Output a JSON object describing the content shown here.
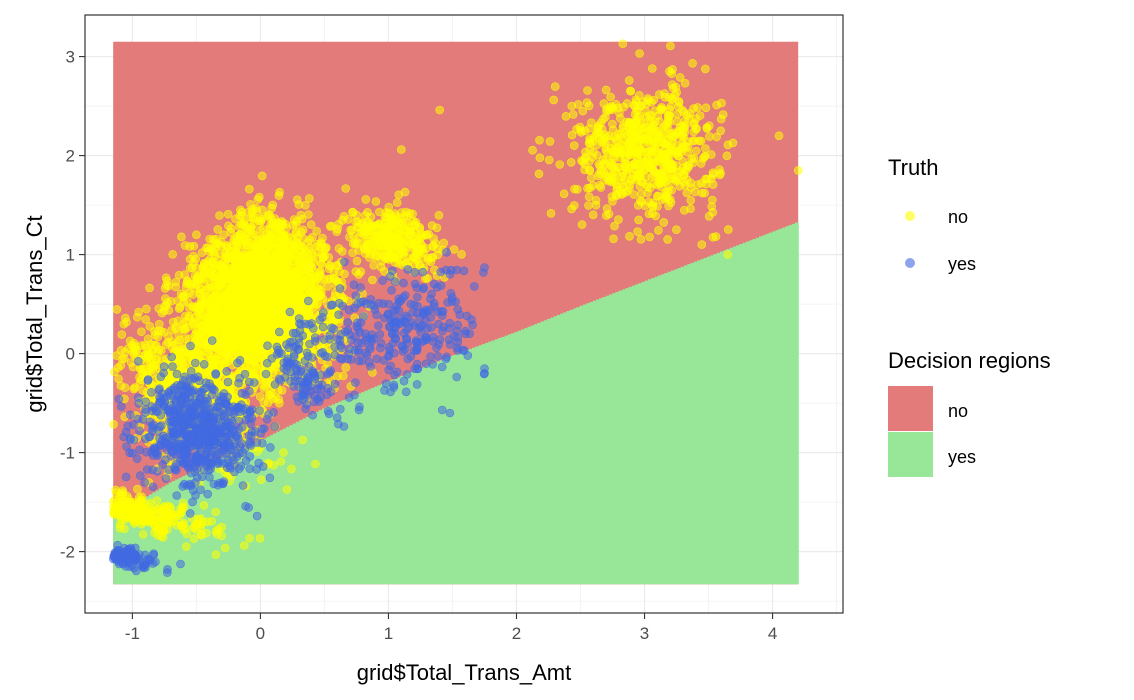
{
  "chart_data": {
    "type": "scatter",
    "title": "",
    "xlabel": "grid$Total_Trans_Amt",
    "ylabel": "grid$Total_Trans_Ct",
    "xlim": [
      -1.37,
      4.55
    ],
    "ylim": [
      -2.62,
      3.42
    ],
    "x_ticks": [
      -1,
      0,
      1,
      2,
      3,
      4
    ],
    "y_ticks": [
      -2,
      -1,
      0,
      1,
      2,
      3
    ],
    "x_tick_labels": [
      "-1",
      "0",
      "1",
      "2",
      "3",
      "4"
    ],
    "y_tick_labels": [
      "-2",
      "-1",
      "0",
      "1",
      "2",
      "3"
    ],
    "grid": true,
    "theme": "bw",
    "decision_regions": {
      "title": "Decision regions",
      "grid_x_range": [
        -1.15,
        4.2
      ],
      "grid_y_range": [
        -2.33,
        3.15
      ],
      "boundary": [
        {
          "x": -1.15,
          "y": -1.65
        },
        {
          "x": -0.7,
          "y": -1.3
        },
        {
          "x": -0.3,
          "y": -1.05
        },
        {
          "x": 0.0,
          "y": -0.88
        },
        {
          "x": 0.5,
          "y": -0.55
        },
        {
          "x": 1.0,
          "y": -0.28
        },
        {
          "x": 1.5,
          "y": -0.02
        },
        {
          "x": 2.0,
          "y": 0.22
        },
        {
          "x": 2.5,
          "y": 0.48
        },
        {
          "x": 3.0,
          "y": 0.73
        },
        {
          "x": 3.5,
          "y": 0.98
        },
        {
          "x": 4.2,
          "y": 1.33
        }
      ],
      "classes": [
        {
          "label": "no",
          "color": "#e47b7b",
          "side": "above"
        },
        {
          "label": "yes",
          "color": "#98e698",
          "side": "below"
        }
      ]
    },
    "truth": {
      "title": "Truth",
      "series": [
        {
          "name": "no",
          "color": "#ffff00",
          "clusters": [
            {
              "cx": 0.0,
              "cy": 0.45,
              "sx": 0.3,
              "sy": 0.38,
              "n": 2600,
              "rot": 0.55
            },
            {
              "cx": -0.55,
              "cy": -0.45,
              "sx": 0.25,
              "sy": 0.45,
              "n": 700,
              "rot": 0.9
            },
            {
              "cx": -0.95,
              "cy": -1.6,
              "sx": 0.09,
              "sy": 0.45,
              "n": 280,
              "rot": 1.35
            },
            {
              "cx": 0.1,
              "cy": 1.05,
              "sx": 0.2,
              "sy": 0.25,
              "n": 250,
              "rot": 0.4
            },
            {
              "cx": 1.05,
              "cy": 1.15,
              "sx": 0.16,
              "sy": 0.3,
              "n": 320,
              "rot": 1.3
            },
            {
              "cx": 3.0,
              "cy": 2.05,
              "sx": 0.28,
              "sy": 0.32,
              "n": 650,
              "rot": 0.0
            }
          ],
          "extra_points": [
            {
              "x": 2.83,
              "y": 3.13
            },
            {
              "x": 4.2,
              "y": 1.85
            },
            {
              "x": 4.05,
              "y": 2.2
            },
            {
              "x": 1.4,
              "y": 2.46
            },
            {
              "x": 1.1,
              "y": 2.06
            },
            {
              "x": 3.65,
              "y": 1.0
            },
            {
              "x": 0.15,
              "y": 1.63
            },
            {
              "x": -0.5,
              "y": 1.2
            },
            {
              "x": 0.18,
              "y": -1.0
            }
          ]
        },
        {
          "name": "yes",
          "color": "#4169e1",
          "clusters": [
            {
              "cx": -0.5,
              "cy": -0.75,
              "sx": 0.25,
              "sy": 0.35,
              "n": 650,
              "rot": 0.9
            },
            {
              "cx": -1.08,
              "cy": -2.05,
              "sx": 0.06,
              "sy": 0.22,
              "n": 130,
              "rot": 1.4
            },
            {
              "cx": 0.35,
              "cy": -0.25,
              "sx": 0.15,
              "sy": 0.3,
              "n": 110,
              "rot": 0.9
            },
            {
              "cx": 1.15,
              "cy": 0.25,
              "sx": 0.28,
              "sy": 0.3,
              "n": 230,
              "rot": 0.2
            },
            {
              "cx": 0.6,
              "cy": 0.15,
              "sx": 0.25,
              "sy": 0.2,
              "n": 55,
              "rot": 0.0
            }
          ],
          "extra_points": [
            {
              "x": 1.75,
              "y": 0.87
            },
            {
              "x": 1.48,
              "y": -0.6
            },
            {
              "x": 1.42,
              "y": -0.57
            },
            {
              "x": 1.75,
              "y": -0.2
            },
            {
              "x": 1.75,
              "y": -0.15
            },
            {
              "x": 1.0,
              "y": 0.5
            },
            {
              "x": 1.15,
              "y": 0.85
            },
            {
              "x": 1.6,
              "y": 0.2
            }
          ]
        }
      ]
    },
    "legend_position": "right"
  }
}
